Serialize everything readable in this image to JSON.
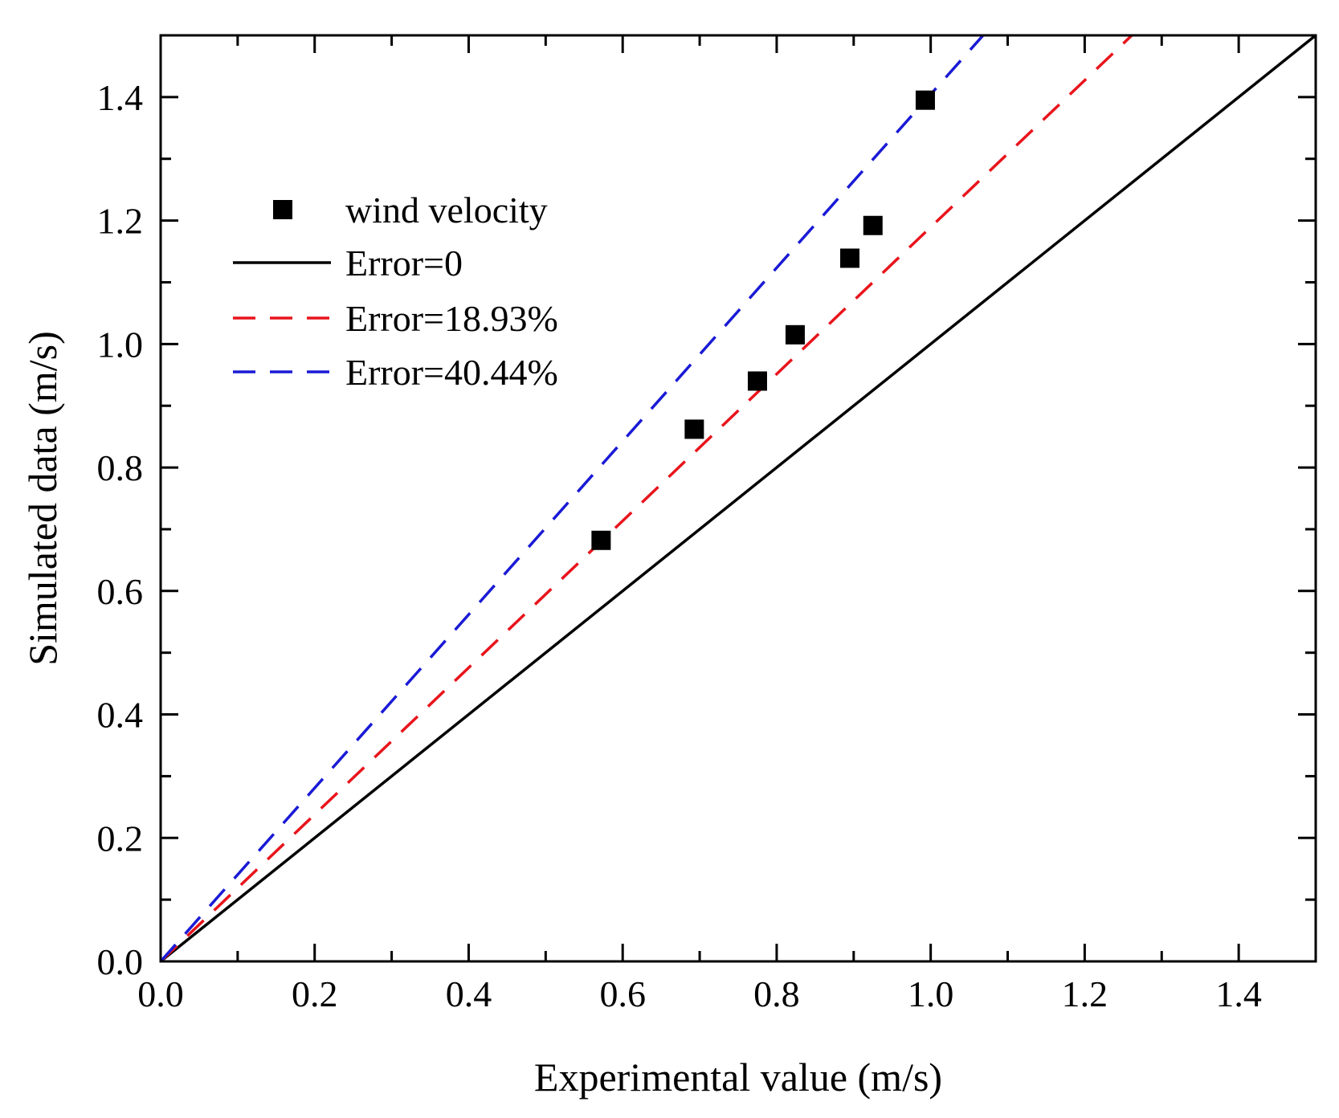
{
  "chart_data": {
    "type": "scatter",
    "title": "",
    "xlabel": "Experimental value (m/s)",
    "ylabel": "Simulated data (m/s)",
    "xlim": [
      0.0,
      1.5
    ],
    "ylim": [
      0.0,
      1.5
    ],
    "xticks": [
      "0.0",
      "0.2",
      "0.4",
      "0.6",
      "0.8",
      "1.0",
      "1.2",
      "1.4"
    ],
    "yticks": [
      "0.0",
      "0.2",
      "0.4",
      "0.6",
      "0.8",
      "1.0",
      "1.2",
      "1.4"
    ],
    "grid": false,
    "legend_position": "upper-left",
    "series": [
      {
        "name": "wind velocity",
        "kind": "scatter",
        "marker": "square",
        "color": "#000000",
        "x": [
          0.572,
          0.693,
          0.775,
          0.824,
          0.895,
          0.925,
          0.993
        ],
        "y": [
          0.682,
          0.862,
          0.94,
          1.015,
          1.139,
          1.192,
          1.395
        ]
      },
      {
        "name": "Error=0",
        "kind": "line",
        "style": "solid",
        "color": "#000000",
        "slope": 1.0
      },
      {
        "name": "Error=18.93%",
        "kind": "line",
        "style": "dashed",
        "color": "#e8141c",
        "slope": 1.1893
      },
      {
        "name": "Error=40.44%",
        "kind": "line",
        "style": "dashed",
        "color": "#1a1ad6",
        "slope": 1.4044
      }
    ]
  }
}
